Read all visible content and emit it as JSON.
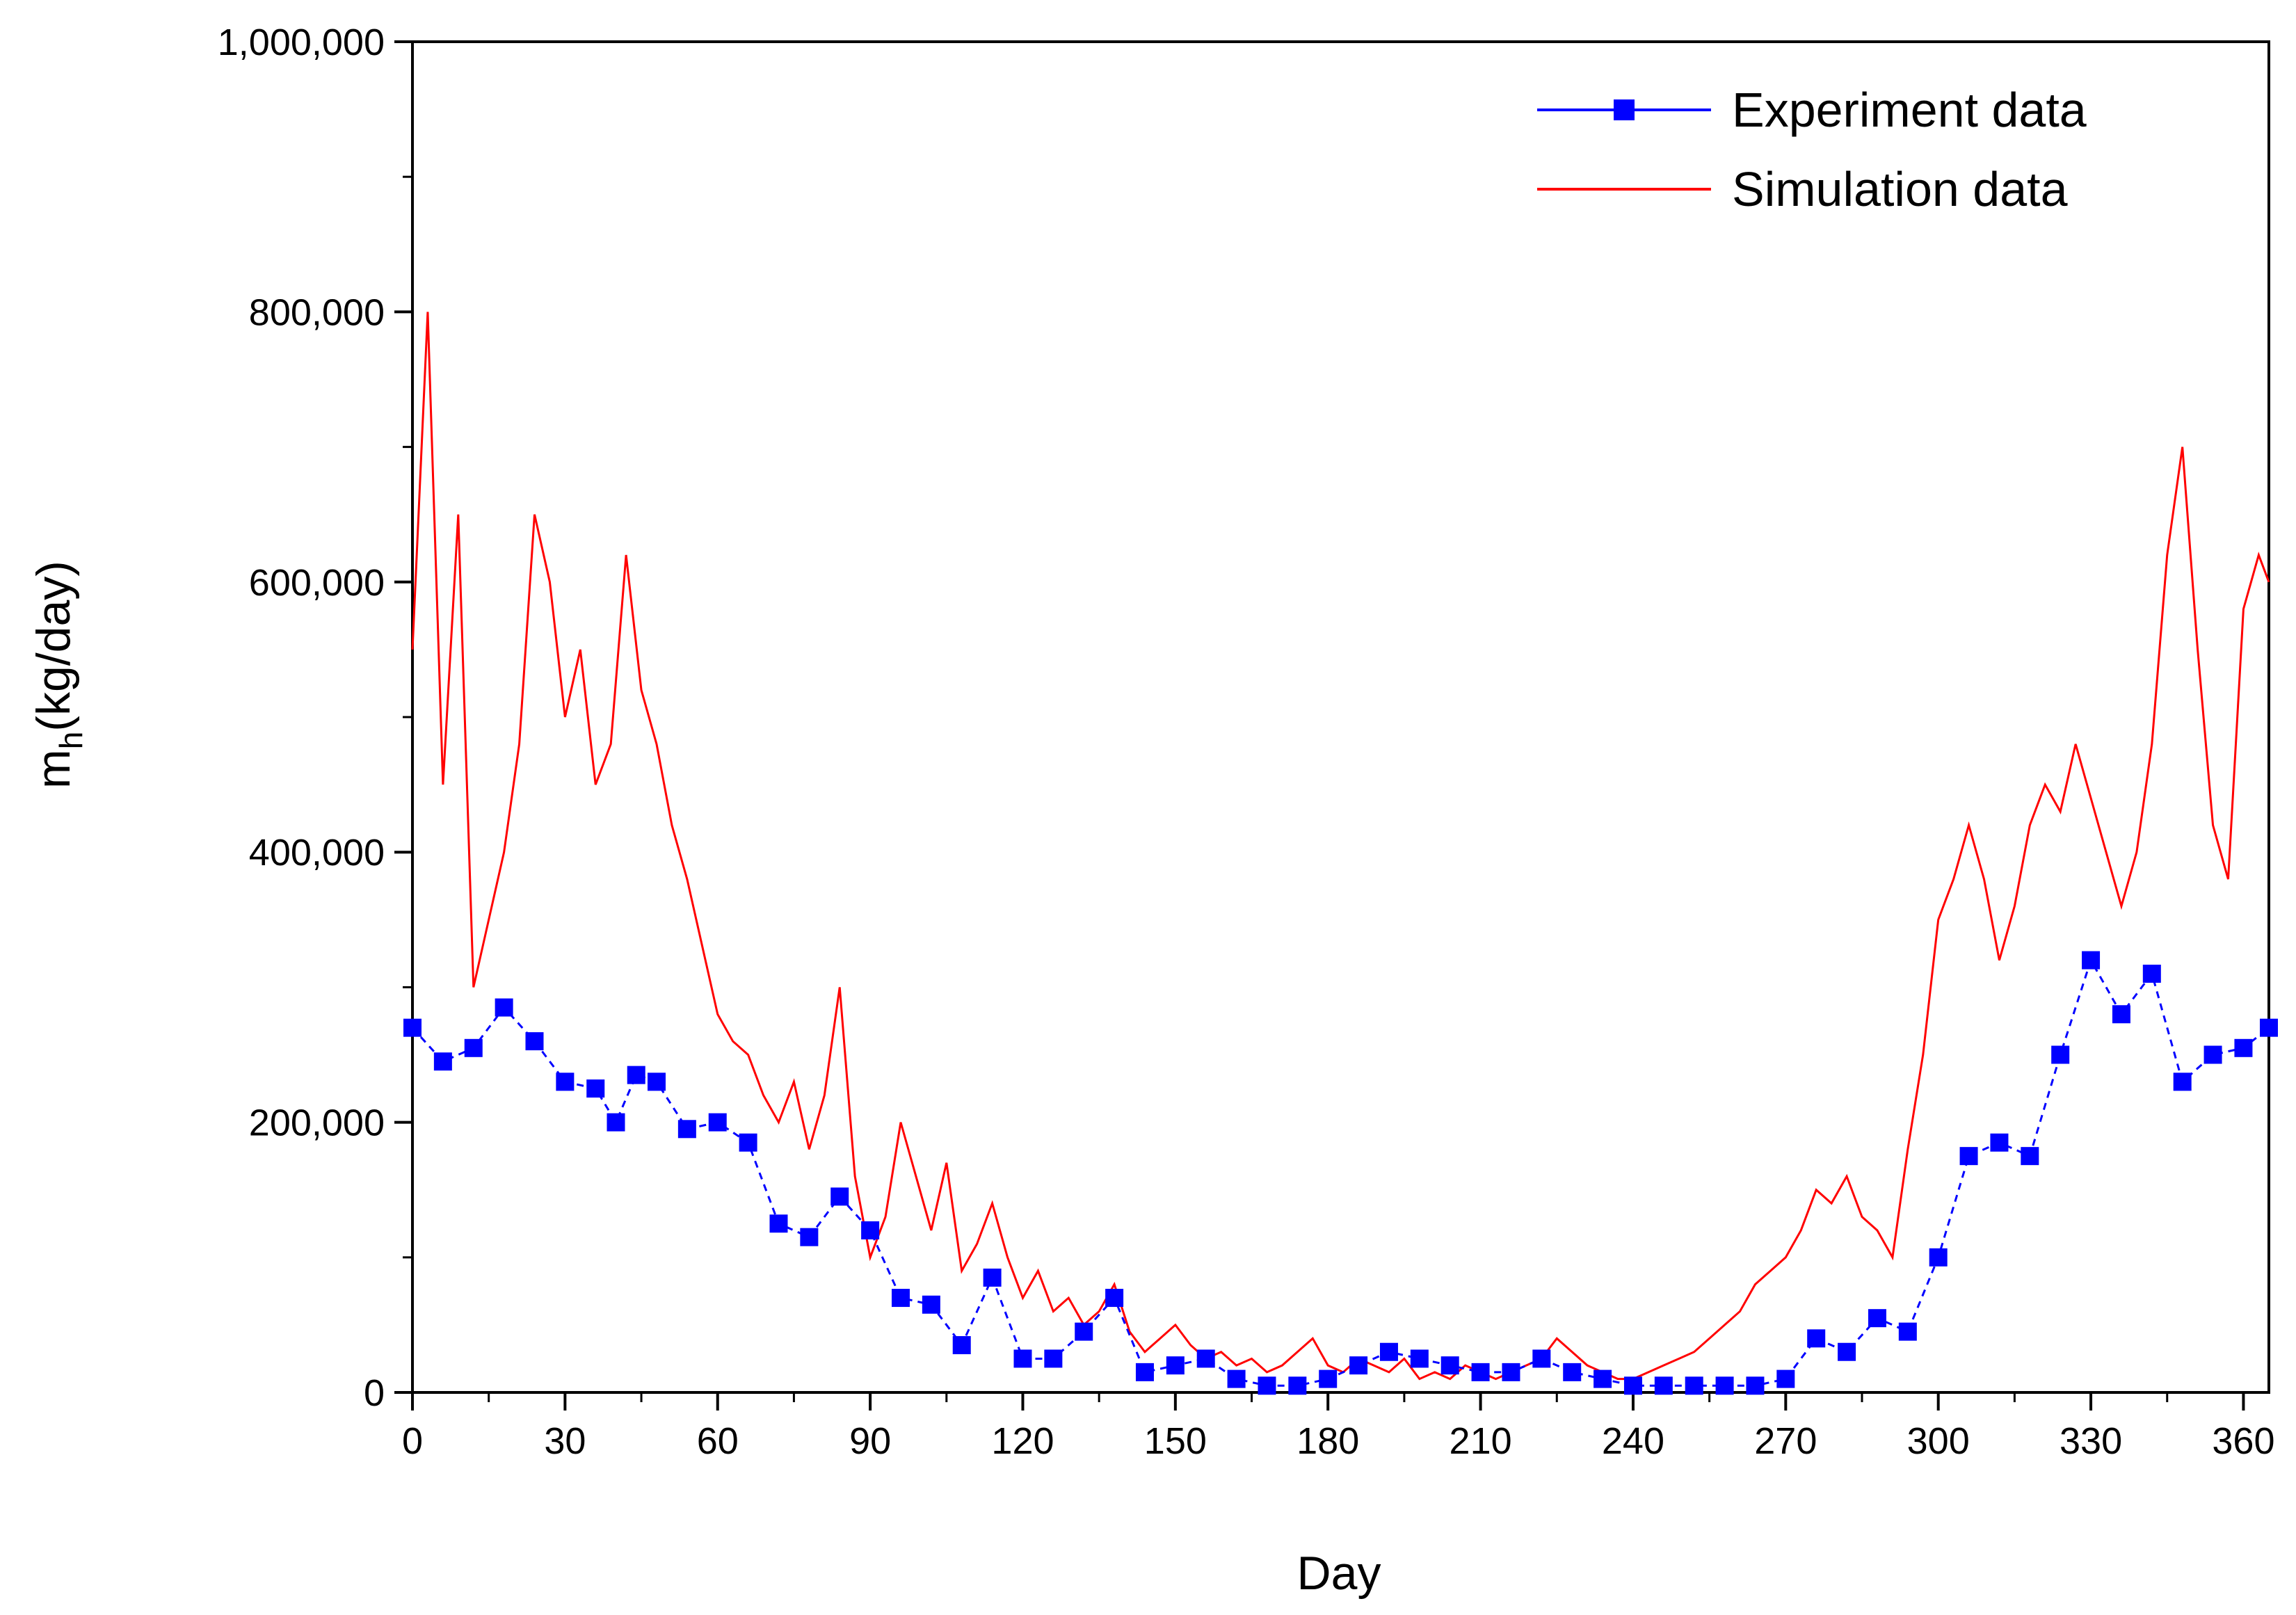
{
  "chart_data": {
    "type": "line",
    "xlabel": "Day",
    "ylabel_main": "m",
    "ylabel_sub": "h",
    "ylabel_unit": "(kg/day)",
    "xlim": [
      0,
      365
    ],
    "ylim": [
      0,
      1000000
    ],
    "x_ticks": [
      0,
      30,
      60,
      90,
      120,
      150,
      180,
      210,
      240,
      270,
      300,
      330,
      360
    ],
    "x_tick_labels": [
      "0",
      "30",
      "60",
      "90",
      "120",
      "150",
      "180",
      "210",
      "240",
      "270",
      "300",
      "330",
      "360"
    ],
    "y_ticks": [
      0,
      200000,
      400000,
      600000,
      800000,
      1000000
    ],
    "y_tick_labels": [
      "0",
      "200,000",
      "400,000",
      "600,000",
      "800,000",
      "1,000,000"
    ],
    "legend_position": "top-right",
    "series": [
      {
        "name": "Experiment data",
        "color": "#0000ff",
        "marker": "square",
        "line_style": "dashed",
        "x": [
          0,
          6,
          12,
          18,
          24,
          30,
          36,
          40,
          44,
          48,
          54,
          60,
          66,
          72,
          78,
          84,
          90,
          96,
          102,
          108,
          114,
          120,
          126,
          132,
          138,
          144,
          150,
          156,
          162,
          168,
          174,
          180,
          186,
          192,
          198,
          204,
          210,
          216,
          222,
          228,
          234,
          240,
          246,
          252,
          258,
          264,
          270,
          276,
          282,
          288,
          294,
          300,
          306,
          312,
          318,
          324,
          330,
          336,
          342,
          348,
          354,
          360,
          365
        ],
        "y": [
          270000,
          245000,
          255000,
          285000,
          260000,
          230000,
          225000,
          200000,
          235000,
          230000,
          195000,
          200000,
          185000,
          125000,
          115000,
          145000,
          120000,
          70000,
          65000,
          35000,
          85000,
          25000,
          25000,
          45000,
          70000,
          15000,
          20000,
          25000,
          10000,
          5000,
          5000,
          10000,
          20000,
          30000,
          25000,
          20000,
          15000,
          15000,
          25000,
          15000,
          10000,
          5000,
          5000,
          5000,
          5000,
          5000,
          10000,
          40000,
          30000,
          55000,
          45000,
          100000,
          175000,
          185000,
          175000,
          250000,
          320000,
          280000,
          310000,
          230000,
          250000,
          255000,
          270000
        ]
      },
      {
        "name": "Simulation data",
        "color": "#ff0000",
        "line_style": "solid",
        "x": [
          0,
          3,
          6,
          9,
          12,
          15,
          18,
          21,
          24,
          27,
          30,
          33,
          36,
          39,
          42,
          45,
          48,
          51,
          54,
          57,
          60,
          63,
          66,
          69,
          72,
          75,
          78,
          81,
          84,
          87,
          90,
          93,
          96,
          99,
          102,
          105,
          108,
          111,
          114,
          117,
          120,
          123,
          126,
          129,
          132,
          135,
          138,
          141,
          144,
          147,
          150,
          153,
          156,
          159,
          162,
          165,
          168,
          171,
          174,
          177,
          180,
          183,
          186,
          189,
          192,
          195,
          198,
          201,
          204,
          207,
          210,
          213,
          216,
          219,
          222,
          225,
          228,
          231,
          234,
          237,
          240,
          243,
          246,
          249,
          252,
          255,
          258,
          261,
          264,
          267,
          270,
          273,
          276,
          279,
          282,
          285,
          288,
          291,
          294,
          297,
          300,
          303,
          306,
          309,
          312,
          315,
          318,
          321,
          324,
          327,
          330,
          333,
          336,
          339,
          342,
          345,
          348,
          351,
          354,
          357,
          360,
          363,
          365
        ],
        "y": [
          550000,
          800000,
          450000,
          650000,
          300000,
          350000,
          400000,
          480000,
          650000,
          600000,
          500000,
          550000,
          450000,
          480000,
          620000,
          520000,
          480000,
          420000,
          380000,
          330000,
          280000,
          260000,
          250000,
          220000,
          200000,
          230000,
          180000,
          220000,
          300000,
          160000,
          100000,
          130000,
          200000,
          160000,
          120000,
          170000,
          90000,
          110000,
          140000,
          100000,
          70000,
          90000,
          60000,
          70000,
          50000,
          60000,
          80000,
          45000,
          30000,
          40000,
          50000,
          35000,
          25000,
          30000,
          20000,
          25000,
          15000,
          20000,
          30000,
          40000,
          20000,
          15000,
          25000,
          20000,
          15000,
          25000,
          10000,
          15000,
          10000,
          20000,
          15000,
          10000,
          15000,
          20000,
          25000,
          40000,
          30000,
          20000,
          15000,
          10000,
          10000,
          15000,
          20000,
          25000,
          30000,
          40000,
          50000,
          60000,
          80000,
          90000,
          100000,
          120000,
          150000,
          140000,
          160000,
          130000,
          120000,
          100000,
          180000,
          250000,
          350000,
          380000,
          420000,
          380000,
          320000,
          360000,
          420000,
          450000,
          430000,
          480000,
          440000,
          400000,
          360000,
          400000,
          480000,
          620000,
          700000,
          550000,
          420000,
          380000,
          580000,
          620000,
          600000
        ]
      }
    ]
  }
}
